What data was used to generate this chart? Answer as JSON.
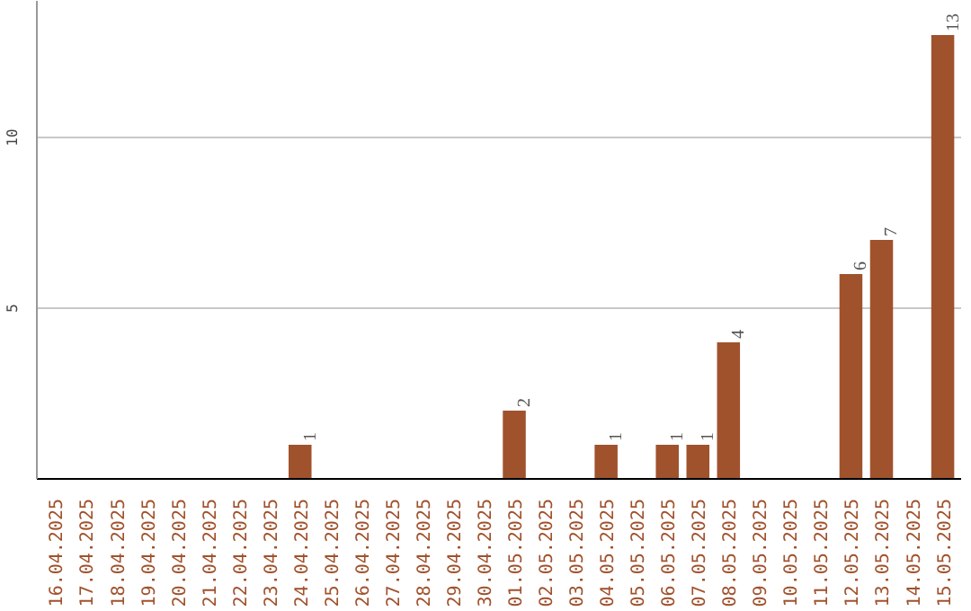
{
  "chart_data": {
    "type": "bar",
    "categories": [
      "16.04.2025",
      "17.04.2025",
      "18.04.2025",
      "19.04.2025",
      "20.04.2025",
      "21.04.2025",
      "22.04.2025",
      "23.04.2025",
      "24.04.2025",
      "25.04.2025",
      "26.04.2025",
      "27.04.2025",
      "28.04.2025",
      "29.04.2025",
      "30.04.2025",
      "01.05.2025",
      "02.05.2025",
      "03.05.2025",
      "04.05.2025",
      "05.05.2025",
      "06.05.2025",
      "07.05.2025",
      "08.05.2025",
      "09.05.2025",
      "10.05.2025",
      "11.05.2025",
      "12.05.2025",
      "13.05.2025",
      "14.05.2025",
      "15.05.2025"
    ],
    "values": [
      0,
      0,
      0,
      0,
      0,
      0,
      0,
      0,
      1,
      0,
      0,
      0,
      0,
      0,
      0,
      2,
      0,
      0,
      1,
      0,
      1,
      1,
      4,
      0,
      0,
      0,
      6,
      7,
      0,
      13
    ],
    "value_labels": [
      null,
      null,
      null,
      null,
      null,
      null,
      null,
      null,
      "1",
      null,
      null,
      null,
      null,
      null,
      null,
      "2",
      null,
      null,
      "1",
      null,
      "1",
      "1",
      "4",
      null,
      null,
      null,
      "6",
      "7",
      null,
      "13"
    ],
    "color": "#a0522d",
    "ylim": [
      0,
      14
    ],
    "yticks": [
      5,
      10
    ],
    "grid": "y"
  }
}
